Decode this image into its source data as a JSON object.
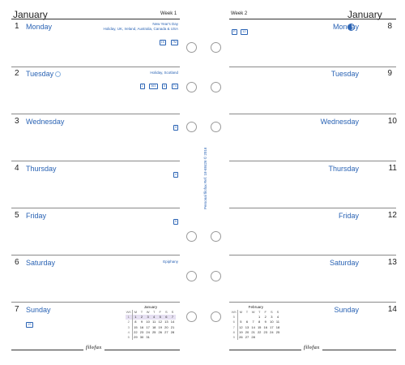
{
  "left": {
    "month": "January",
    "week_label": "Week 1",
    "days": [
      {
        "num": "1",
        "name": "Monday",
        "notes": [
          "New Year's Day",
          "Holiday, UK, Ireland, Australia, Canada & USA"
        ],
        "badges": [
          "1K",
          "7M"
        ]
      },
      {
        "num": "2",
        "name": "Tuesday",
        "notes": [
          "Holiday, Scotland"
        ],
        "badges": [
          "2",
          "363",
          "6",
          "T4"
        ]
      },
      {
        "num": "3",
        "name": "Wednesday",
        "notes": [],
        "badges": [
          "3"
        ]
      },
      {
        "num": "4",
        "name": "Thursday",
        "notes": [],
        "badges": [
          "4"
        ]
      },
      {
        "num": "5",
        "name": "Friday",
        "notes": [],
        "badges": [
          "5"
        ]
      },
      {
        "num": "6",
        "name": "Saturday",
        "notes": [
          "Epiphany"
        ],
        "badges": []
      },
      {
        "num": "7",
        "name": "Sunday",
        "notes": [],
        "badges": [
          "1S"
        ]
      }
    ],
    "mini_calendar": {
      "title": "January",
      "headers": [
        "WK",
        "M",
        "T",
        "W",
        "T",
        "F",
        "S",
        "S"
      ],
      "rows": [
        [
          "1",
          "1",
          "2",
          "3",
          "4",
          "5",
          "6",
          "7"
        ],
        [
          "2",
          "8",
          "9",
          "10",
          "11",
          "12",
          "13",
          "14"
        ],
        [
          "3",
          "15",
          "16",
          "17",
          "18",
          "19",
          "20",
          "21"
        ],
        [
          "4",
          "22",
          "23",
          "24",
          "25",
          "26",
          "27",
          "28"
        ],
        [
          "5",
          "29",
          "30",
          "31",
          "",
          "",
          "",
          ""
        ]
      ]
    },
    "logo": "filofax"
  },
  "right": {
    "month": "January",
    "week_label": "Week 2",
    "header_badges": [
      "P",
      "12"
    ],
    "days": [
      {
        "num": "8",
        "name": "Monday"
      },
      {
        "num": "9",
        "name": "Tuesday"
      },
      {
        "num": "10",
        "name": "Wednesday"
      },
      {
        "num": "11",
        "name": "Thursday"
      },
      {
        "num": "12",
        "name": "Friday"
      },
      {
        "num": "13",
        "name": "Saturday"
      },
      {
        "num": "14",
        "name": "Sunday"
      }
    ],
    "mini_calendar": {
      "title": "February",
      "headers": [
        "WK",
        "M",
        "T",
        "W",
        "T",
        "F",
        "S",
        "S"
      ],
      "rows": [
        [
          "5",
          "",
          "",
          "",
          "1",
          "2",
          "3",
          "4"
        ],
        [
          "6",
          "5",
          "6",
          "7",
          "8",
          "9",
          "10",
          "11"
        ],
        [
          "7",
          "12",
          "13",
          "14",
          "15",
          "16",
          "17",
          "18"
        ],
        [
          "8",
          "19",
          "20",
          "21",
          "22",
          "23",
          "24",
          "25"
        ],
        [
          "9",
          "26",
          "27",
          "28",
          "",
          "",
          "",
          ""
        ]
      ]
    },
    "logo": "filofax"
  },
  "spine": {
    "text": "Personal   filofax  Ref. 18-68426   © 2016"
  },
  "colors": {
    "accent": "#2a63b4",
    "ink": "#222222",
    "rule": "#8a8a8a"
  }
}
